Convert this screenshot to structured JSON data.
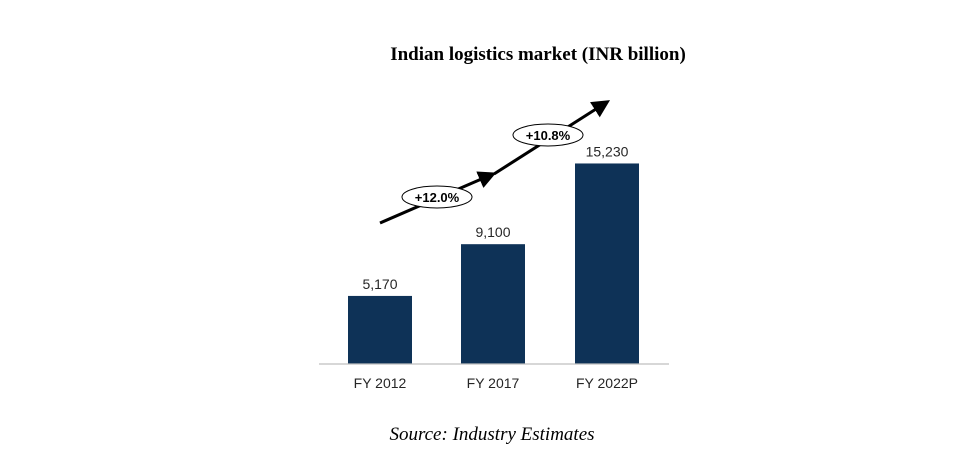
{
  "chart_data": {
    "type": "bar",
    "title": "Indian logistics market (INR billion)",
    "categories": [
      "FY 2012",
      "FY 2017",
      "FY 2022P"
    ],
    "values": [
      5170,
      9100,
      15230
    ],
    "value_labels": [
      "5,170",
      "9,100",
      "15,230"
    ],
    "ylim": [
      0,
      18000
    ],
    "grid": false,
    "legend": "none",
    "bar_color": "#0e3257",
    "annotations": [
      {
        "text": "+12.0%",
        "from": "FY 2012",
        "to": "FY 2017"
      },
      {
        "text": "+10.8%",
        "from": "FY 2017",
        "to": "FY 2022P"
      }
    ]
  },
  "source": "Source: Industry Estimates"
}
